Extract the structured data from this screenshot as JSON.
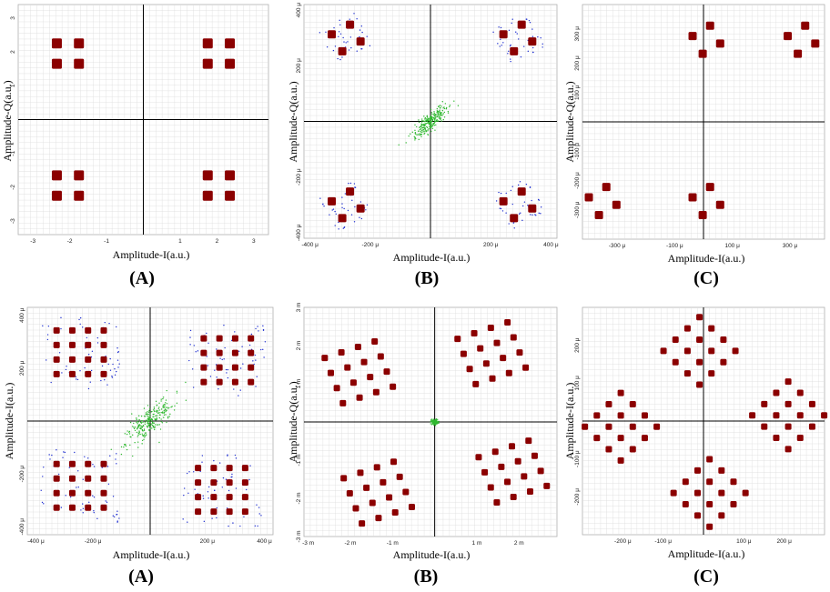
{
  "colors": {
    "signal": "#8b0000",
    "noise": "#1f2fd0",
    "center": "#2fb82f",
    "grid": "#dcdcdc",
    "axis": "#000000"
  },
  "chart_data": [
    {
      "id": "top-a",
      "type": "scatter",
      "panel_label": "(A)",
      "xlabel": "Amplitude-I(a.u.)",
      "ylabel": "Amplitude-Q(a.u.)",
      "xlim": [
        -3.4,
        3.4
      ],
      "ylim": [
        -3.4,
        3.4
      ],
      "x_ticks": [
        -3,
        -2,
        -1,
        1,
        2,
        3
      ],
      "x_tick_labels": [
        "-3",
        "-2",
        "-1",
        "1",
        "2",
        "3"
      ],
      "y_ticks": [
        -3,
        -2,
        -1,
        1,
        2,
        3
      ],
      "y_tick_labels": [
        "-3",
        "-2",
        "-1",
        "1",
        "2",
        "3"
      ],
      "clusters": [
        {
          "center": [
            -2.05,
            1.95
          ],
          "spacing": 0.6,
          "n": 2,
          "rotation": 0
        },
        {
          "center": [
            2.05,
            1.95
          ],
          "spacing": 0.6,
          "n": 2,
          "rotation": 0
        },
        {
          "center": [
            -2.05,
            -1.95
          ],
          "spacing": 0.6,
          "n": 2,
          "rotation": 0
        },
        {
          "center": [
            2.05,
            -1.95
          ],
          "spacing": 0.6,
          "n": 2,
          "rotation": 0
        }
      ],
      "noise": 0,
      "center_cloud": 0
    },
    {
      "id": "top-b",
      "type": "scatter",
      "panel_label": "(B)",
      "xlabel": "Amplitude-I(a.u.)",
      "ylabel": "Amplitude-Q(a.u.)",
      "xlim": [
        -420,
        420
      ],
      "ylim": [
        -420,
        420
      ],
      "x_ticks": [
        -400,
        -200,
        200,
        400
      ],
      "x_tick_labels": [
        "-400 μ",
        "-200 μ",
        "200 μ",
        "400 μ"
      ],
      "y_ticks": [
        -400,
        -200,
        200,
        400
      ],
      "y_tick_labels": [
        "-400 μ",
        "-200 μ",
        "200 μ",
        "400 μ"
      ],
      "clusters": [
        {
          "center": [
            -280,
            300
          ],
          "spacing": 70,
          "n": 2,
          "rotation": 30
        },
        {
          "center": [
            290,
            300
          ],
          "spacing": 70,
          "n": 2,
          "rotation": 30
        },
        {
          "center": [
            -280,
            -300
          ],
          "spacing": 70,
          "n": 2,
          "rotation": 30
        },
        {
          "center": [
            290,
            -300
          ],
          "spacing": 70,
          "n": 2,
          "rotation": 30
        }
      ],
      "noise": 45,
      "center_cloud": 70
    },
    {
      "id": "top-c",
      "type": "scatter",
      "panel_label": "(C)",
      "xlabel": "Amplitude-I(a.u.)",
      "ylabel": "Amplitude-Q(a.u.)",
      "xlim": [
        -420,
        420
      ],
      "ylim": [
        -400,
        400
      ],
      "x_ticks": [
        -300,
        -100,
        100,
        300
      ],
      "x_tick_labels": [
        "-300 μ",
        "-100 μ",
        "100 μ",
        "300 μ"
      ],
      "y_ticks": [
        -300,
        -200,
        -100,
        100,
        200,
        300
      ],
      "y_tick_labels": [
        "-300 μ",
        "-200 μ",
        "-100 μ",
        "100 μ",
        "200 μ",
        "300 μ"
      ],
      "clusters": [
        {
          "center": [
            10,
            280
          ],
          "spacing": 70,
          "n": 2,
          "rotation": 30
        },
        {
          "center": [
            340,
            280
          ],
          "spacing": 70,
          "n": 2,
          "rotation": 30
        },
        {
          "center": [
            -350,
            -270
          ],
          "spacing": 70,
          "n": 2,
          "rotation": 30
        },
        {
          "center": [
            10,
            -270
          ],
          "spacing": 70,
          "n": 2,
          "rotation": 30
        }
      ],
      "noise": 0,
      "center_cloud": 0
    },
    {
      "id": "bottom-a",
      "type": "scatter",
      "panel_label": "(A)",
      "xlabel": "Amplitude-I(a.u.)",
      "ylabel": "Amplitude-I(a.u.)",
      "xlim": [
        -430,
        430
      ],
      "ylim": [
        -430,
        430
      ],
      "x_ticks": [
        -400,
        -200,
        200,
        400
      ],
      "x_tick_labels": [
        "-400 μ",
        "-200 μ",
        "200 μ",
        "400 μ"
      ],
      "y_ticks": [
        -400,
        -200,
        200,
        400
      ],
      "y_tick_labels": [
        "-400 μ",
        "-200 μ",
        "200 μ",
        "400 μ"
      ],
      "clusters": [
        {
          "center": [
            -245,
            260
          ],
          "spacing": 55,
          "n": 4,
          "rotation": 0
        },
        {
          "center": [
            270,
            230
          ],
          "spacing": 55,
          "n": 4,
          "rotation": 0
        },
        {
          "center": [
            -245,
            -245
          ],
          "spacing": 55,
          "n": 4,
          "rotation": 0
        },
        {
          "center": [
            250,
            -260
          ],
          "spacing": 55,
          "n": 4,
          "rotation": 0
        }
      ],
      "noise": 70,
      "center_cloud": 110
    },
    {
      "id": "bottom-b",
      "type": "scatter",
      "panel_label": "(B)",
      "xlabel": "Amplitude-I(a.u.)",
      "ylabel": "Amplitude-Q(a.u.)",
      "xlim": [
        -3.1,
        2.9
      ],
      "ylim": [
        -3.0,
        3.0
      ],
      "x_ticks": [
        -3,
        -2,
        -1,
        1,
        2
      ],
      "x_tick_labels": [
        "-3 m",
        "-2 m",
        "-1 m",
        "1 m",
        "2 m"
      ],
      "y_ticks": [
        -3,
        -2,
        -1,
        1,
        2,
        3
      ],
      "y_tick_labels": [
        "-3 m",
        "-2 m",
        "-1 m",
        "1 m",
        "2 m",
        "3 m"
      ],
      "clusters": [
        {
          "center": [
            -1.8,
            1.3
          ],
          "spacing": 0.42,
          "n": 4,
          "rotation": 20
        },
        {
          "center": [
            1.35,
            1.8
          ],
          "spacing": 0.42,
          "n": 4,
          "rotation": 20
        },
        {
          "center": [
            -1.35,
            -1.85
          ],
          "spacing": 0.42,
          "n": 4,
          "rotation": 20
        },
        {
          "center": [
            1.85,
            -1.3
          ],
          "spacing": 0.42,
          "n": 4,
          "rotation": 20
        }
      ],
      "noise": 0,
      "center_cloud": 0.12
    },
    {
      "id": "bottom-c",
      "type": "scatter",
      "panel_label": "(C)",
      "xlabel": "Amplitude-I(a.u.)",
      "ylabel": "Amplitude-I(a.u.)",
      "xlim": [
        -300,
        300
      ],
      "ylim": [
        -300,
        300
      ],
      "x_ticks": [
        -200,
        -100,
        100,
        200
      ],
      "x_tick_labels": [
        "-200 μ",
        "-100 μ",
        "100 μ",
        "200 μ"
      ],
      "y_ticks": [
        -200,
        -100,
        100,
        200
      ],
      "y_tick_labels": [
        "-200 μ",
        "-100 μ",
        "100 μ",
        "200 μ"
      ],
      "clusters": [
        {
          "center": [
            -10,
            185
          ],
          "spacing": 42,
          "n": 4,
          "rotation": 45
        },
        {
          "center": [
            210,
            15
          ],
          "spacing": 42,
          "n": 4,
          "rotation": 45
        },
        {
          "center": [
            -205,
            -15
          ],
          "spacing": 42,
          "n": 4,
          "rotation": 45
        },
        {
          "center": [
            15,
            -190
          ],
          "spacing": 42,
          "n": 4,
          "rotation": 45
        }
      ],
      "noise": 0,
      "center_cloud": 0
    }
  ]
}
